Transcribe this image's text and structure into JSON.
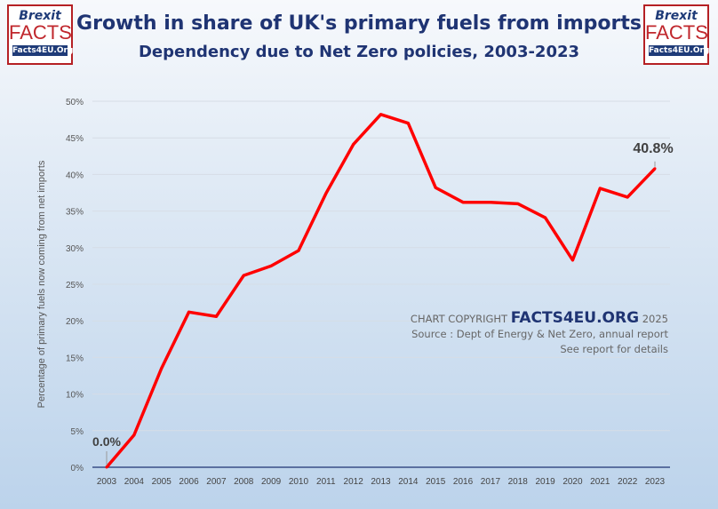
{
  "logo": {
    "line1": "Brexit",
    "line2": "FACTS",
    "line3": "Facts4EU.Org"
  },
  "header": {
    "title": "Growth in share of UK's primary fuels from imports",
    "subtitle": "Dependency due to Net Zero policies, 2003-2023"
  },
  "copyright": {
    "prefix": "CHART COPYRIGHT",
    "brand": "FACTS4EU.ORG",
    "year": "2025",
    "source": "Source : Dept of Energy & Net Zero, annual report",
    "details": "See report for details"
  },
  "chart_data": {
    "type": "line",
    "title": "Growth in share of UK's primary fuels from imports",
    "ylabel": "Percentage of  primary fuels now coming from net imports",
    "xlabel": "",
    "ylim": [
      0,
      50
    ],
    "yticks": [
      "0%",
      "5%",
      "10%",
      "15%",
      "20%",
      "25%",
      "30%",
      "35%",
      "40%",
      "45%",
      "50%"
    ],
    "categories": [
      "2003",
      "2004",
      "2005",
      "2006",
      "2007",
      "2008",
      "2009",
      "2010",
      "2011",
      "2012",
      "2013",
      "2014",
      "2015",
      "2016",
      "2017",
      "2018",
      "2019",
      "2020",
      "2021",
      "2022",
      "2023"
    ],
    "values": [
      0.0,
      4.4,
      13.5,
      21.2,
      20.6,
      26.2,
      27.5,
      29.6,
      37.4,
      44.1,
      48.2,
      47.0,
      38.2,
      36.2,
      36.2,
      36.0,
      34.1,
      28.3,
      38.1,
      36.9,
      40.8
    ],
    "annotations": [
      {
        "index": 0,
        "text": "0.0%"
      },
      {
        "index": 20,
        "text": "40.8%"
      }
    ],
    "line_color": "#ff0000",
    "grid": true
  }
}
